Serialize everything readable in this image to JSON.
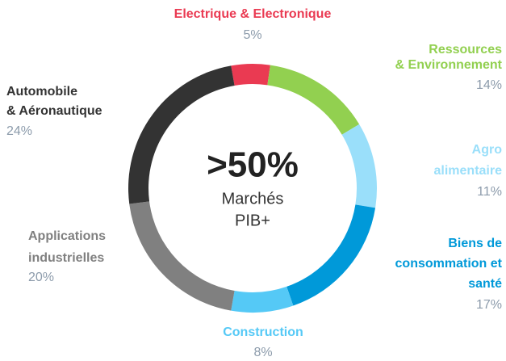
{
  "chart_data": {
    "type": "donut",
    "categories": [
      [
        "Electrique & Electronique"
      ],
      [
        "Ressources",
        "& Environnement"
      ],
      [
        "Agro",
        "alimentaire"
      ],
      [
        "Biens de",
        "consommation et",
        "santé"
      ],
      [
        "Construction"
      ],
      [
        "Applications",
        "industrielles"
      ],
      [
        "Automobile",
        "& Aéronautique"
      ]
    ],
    "values": [
      5,
      14,
      11,
      17,
      8,
      20,
      24
    ],
    "value_labels": [
      "5%",
      "14%",
      "11%",
      "17%",
      "8%",
      "20%",
      "24%"
    ],
    "colors": [
      "#ea3a52",
      "#92d050",
      "#9adffa",
      "#0099d9",
      "#55c9f6",
      "#808080",
      "#333333"
    ],
    "annotations": [
      ">50%",
      "Marchés",
      "PIB+"
    ]
  }
}
